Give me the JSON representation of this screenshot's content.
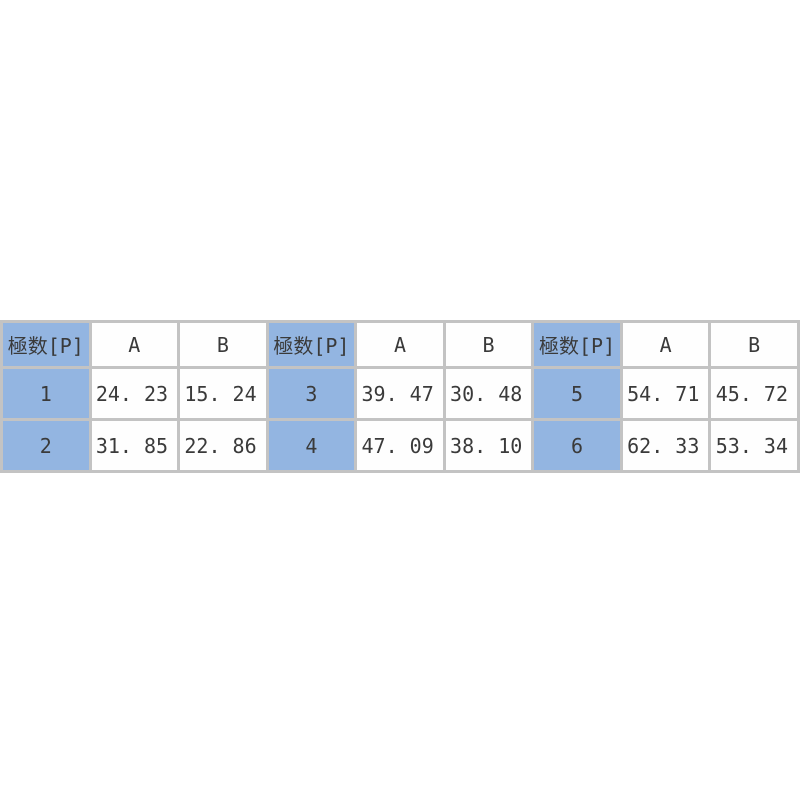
{
  "page": {
    "background": "#ffffff"
  },
  "chart_data": {
    "type": "table",
    "title": "",
    "columns": [
      "極数[P]",
      "A",
      "B"
    ],
    "rows": [
      [
        1,
        24.23,
        15.24
      ],
      [
        2,
        31.85,
        22.86
      ],
      [
        3,
        39.47,
        30.48
      ],
      [
        4,
        47.09,
        38.1
      ],
      [
        5,
        54.71,
        45.72
      ],
      [
        6,
        62.33,
        53.34
      ]
    ],
    "layout": "single table strip centered vertically; three side-by-side column groups each repeating headers 極数[P]/A/B; key column cells shaded blue; values right-aligned; two data rows per group"
  },
  "table": {
    "header_label": "極数[P]",
    "col_a_label": "A",
    "col_b_label": "B",
    "groups": [
      {
        "rows": [
          {
            "pole": "1",
            "a": "24. 23",
            "b": "15. 24"
          },
          {
            "pole": "2",
            "a": "31. 85",
            "b": "22. 86"
          }
        ]
      },
      {
        "rows": [
          {
            "pole": "3",
            "a": "39. 47",
            "b": "30. 48"
          },
          {
            "pole": "4",
            "a": "47. 09",
            "b": "38. 10"
          }
        ]
      },
      {
        "rows": [
          {
            "pole": "5",
            "a": "54. 71",
            "b": "45. 72"
          },
          {
            "pole": "6",
            "a": "62. 33",
            "b": "53. 34"
          }
        ]
      }
    ],
    "colors": {
      "header_bg": "#93b5e1",
      "cell_bg": "#fefefe",
      "border": "#c3c3c3",
      "text": "#3a3a3a",
      "page_bg": "#ffffff"
    }
  }
}
